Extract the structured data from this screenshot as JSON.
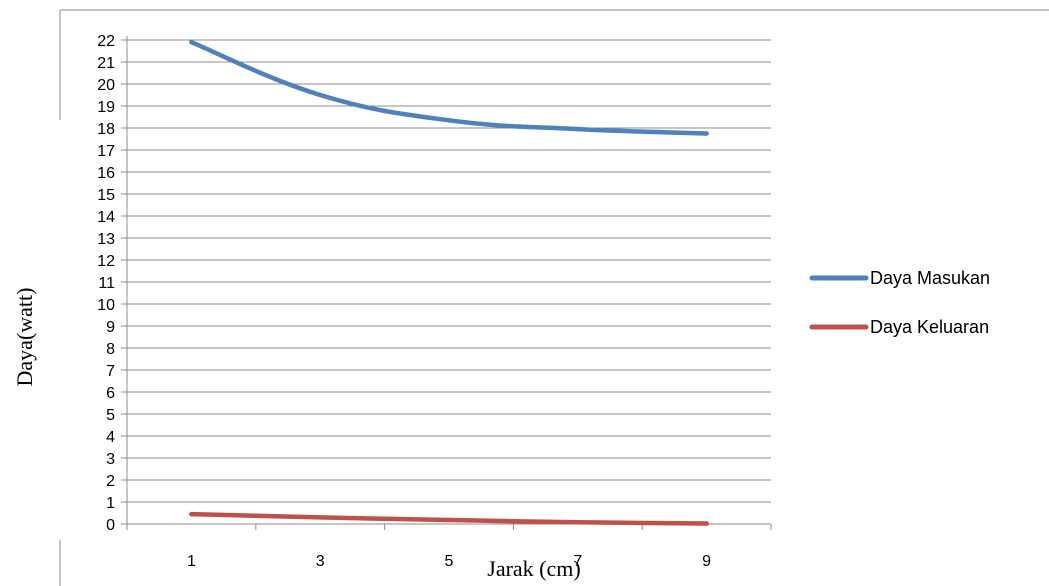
{
  "chart_data": {
    "type": "line",
    "x": [
      1,
      3,
      5,
      7,
      9
    ],
    "xlabel": "Jarak (cm)",
    "ylabel": "Daya(watt)",
    "ylim": [
      0,
      22
    ],
    "yticks": [
      "0",
      "1",
      "2",
      "3",
      "4",
      "5",
      "6",
      "7",
      "8",
      "9",
      "10",
      "11",
      "12",
      "13",
      "14",
      "15",
      "16",
      "17",
      "18",
      "19",
      "20",
      "21",
      "22"
    ],
    "xticks": [
      "1",
      "3",
      "5",
      "7",
      "9"
    ],
    "grid": "horizontal",
    "legend_position": "right",
    "series": [
      {
        "name": "Daya Masukan",
        "color": "#4F81BD",
        "values": [
          21.9,
          19.5,
          18.35,
          17.95,
          17.75
        ]
      },
      {
        "name": "Daya Keluaran",
        "color": "#C0504D",
        "values": [
          0.45,
          0.3,
          0.18,
          0.08,
          0.02
        ]
      }
    ]
  }
}
